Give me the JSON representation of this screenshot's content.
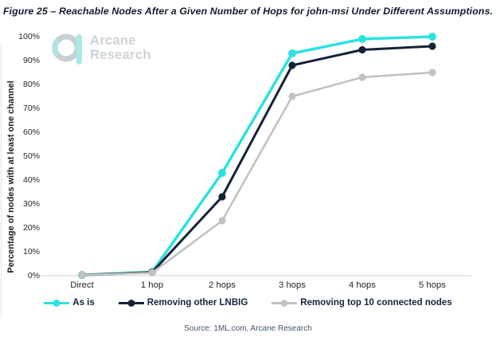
{
  "figure": {
    "source": "Source: 1ML.com, Arcane Research",
    "logo": {
      "line1": "Arcane",
      "line2": "Research"
    }
  },
  "colors": {
    "as_is": "#2be2df",
    "lnbig": "#152238",
    "top10": "#c2c2c2",
    "axis_line": "#d9d9d9",
    "logo_ring": "#c9cfd4",
    "logo_accent": "#a9e8e6"
  },
  "chart_data": {
    "type": "line",
    "title": "Figure 25 – Reachable Nodes After a Given Number of Hops for john-msi Under Different Assumptions.",
    "categories": [
      "Direct",
      "1 hop",
      "2 hops",
      "3 hops",
      "4 hops",
      "5 hops"
    ],
    "series": [
      {
        "name": "As is",
        "color": "#2be2df",
        "values": [
          0.3,
          1.5,
          43,
          93,
          99,
          100
        ]
      },
      {
        "name": "Removing other LNBIG",
        "color": "#152238",
        "values": [
          0.3,
          1.4,
          33,
          88,
          94.5,
          96
        ]
      },
      {
        "name": "Removing top 10 connected nodes",
        "color": "#c2c2c2",
        "values": [
          0.3,
          1.2,
          23,
          75,
          83,
          85
        ]
      }
    ],
    "xlabel": "",
    "ylabel": "Percentage of nodes with at least one channel",
    "ylim": [
      0,
      100
    ],
    "ytick_labels": [
      "0%",
      "10%",
      "20%",
      "30%",
      "40%",
      "50%",
      "60%",
      "70%",
      "80%",
      "90%",
      "100%"
    ],
    "grid": false,
    "legend_position": "bottom"
  }
}
